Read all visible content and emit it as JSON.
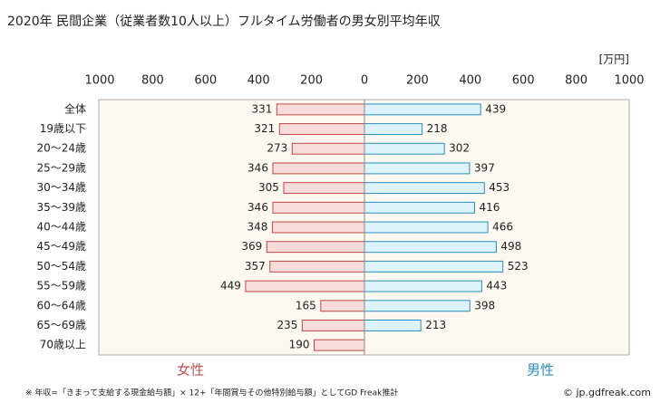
{
  "chart_data": {
    "type": "pyramid",
    "title": "2020年 民間企業（従業者数10人以上）フルタイム労働者の男女別平均年収",
    "unit_label": "[万円]",
    "categories": [
      "全体",
      "19歳以下",
      "20～24歳",
      "25～29歳",
      "30～34歳",
      "35～39歳",
      "40～44歳",
      "45～49歳",
      "50～54歳",
      "55～59歳",
      "60～64歳",
      "65～69歳",
      "70歳以上"
    ],
    "series": [
      {
        "name": "女性",
        "side": "left",
        "color": "#f8dcdc",
        "edge": "#c04848",
        "label_color": "#c05050",
        "values": [
          331,
          321,
          273,
          346,
          305,
          346,
          348,
          369,
          357,
          449,
          165,
          235,
          190
        ]
      },
      {
        "name": "男性",
        "side": "right",
        "color": "#dcf3fb",
        "edge": "#2c8fc0",
        "label_color": "#2c8fc0",
        "values": [
          439,
          218,
          302,
          397,
          453,
          416,
          466,
          498,
          523,
          443,
          398,
          213,
          null
        ]
      }
    ],
    "xlim": [
      0,
      1000
    ],
    "xticks": [
      0,
      200,
      400,
      600,
      800,
      1000
    ],
    "grid": false,
    "note": "※ 年収=「きまって支給する現金給与額」× 12+「年間賞与その他特別給与額」としてGD Freak推計",
    "credit": "© jp.gdfreak.com"
  }
}
